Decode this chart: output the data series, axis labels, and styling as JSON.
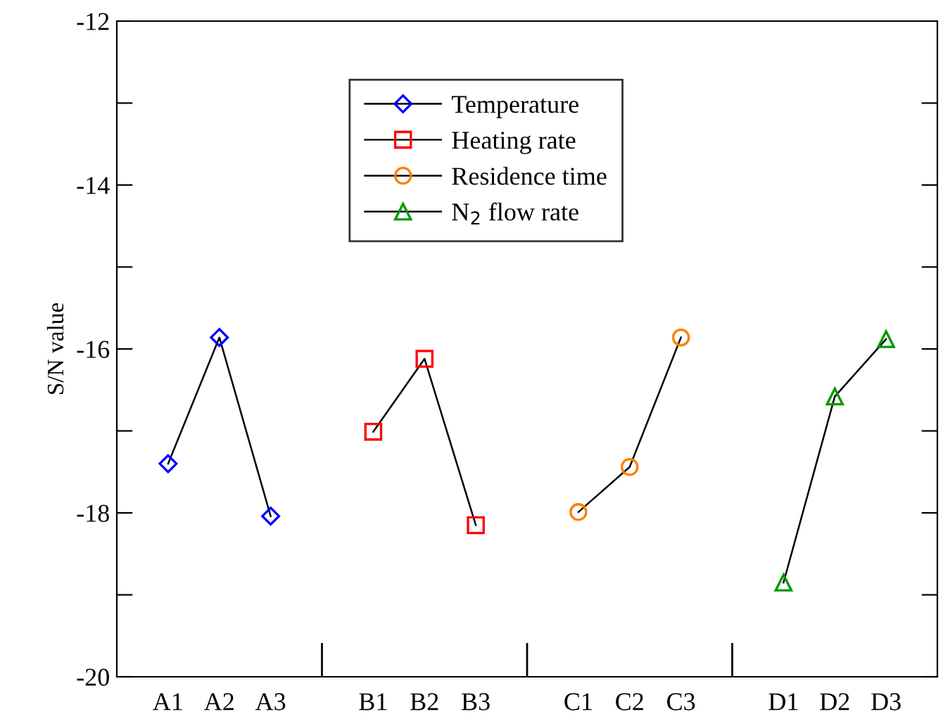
{
  "chart_data": {
    "type": "line",
    "ylabel": "S/N value",
    "categories": [
      "A1",
      "A2",
      "A3",
      null,
      "B1",
      "B2",
      "B3",
      null,
      "C1",
      "C2",
      "C3",
      null,
      "D1",
      "D2",
      "D3"
    ],
    "series": [
      {
        "name": "Temperature",
        "color": "#0000ff",
        "marker": "diamond",
        "values": [
          -17.4,
          -15.86,
          -18.04,
          null,
          null,
          null,
          null,
          null,
          null,
          null,
          null,
          null,
          null,
          null,
          null
        ]
      },
      {
        "name": "Heating rate",
        "color": "#ff0000",
        "marker": "square",
        "values": [
          null,
          null,
          null,
          null,
          -17.01,
          -16.12,
          -18.15,
          null,
          null,
          null,
          null,
          null,
          null,
          null,
          null
        ]
      },
      {
        "name": "Residence time",
        "color": "#ff7f00",
        "marker": "circle",
        "values": [
          null,
          null,
          null,
          null,
          null,
          null,
          null,
          null,
          -17.99,
          -17.44,
          -15.86,
          null,
          null,
          null,
          null
        ]
      },
      {
        "name": "N$_{2}$ flow rate",
        "color": "#009900",
        "marker": "triangle",
        "values": [
          null,
          null,
          null,
          null,
          null,
          null,
          null,
          null,
          null,
          null,
          null,
          null,
          -18.85,
          -16.58,
          -15.88
        ]
      }
    ],
    "ylim": [
      -20,
      -12
    ],
    "yticks": [
      -20,
      {
        "value": -19,
        "label": null
      },
      -18,
      {
        "value": -17,
        "label": null
      },
      -16,
      {
        "value": -15,
        "label": null
      },
      -14,
      {
        "value": -13,
        "label": null
      },
      -12
    ],
    "grid": false,
    "legend": "top",
    "line_style": "solid"
  }
}
